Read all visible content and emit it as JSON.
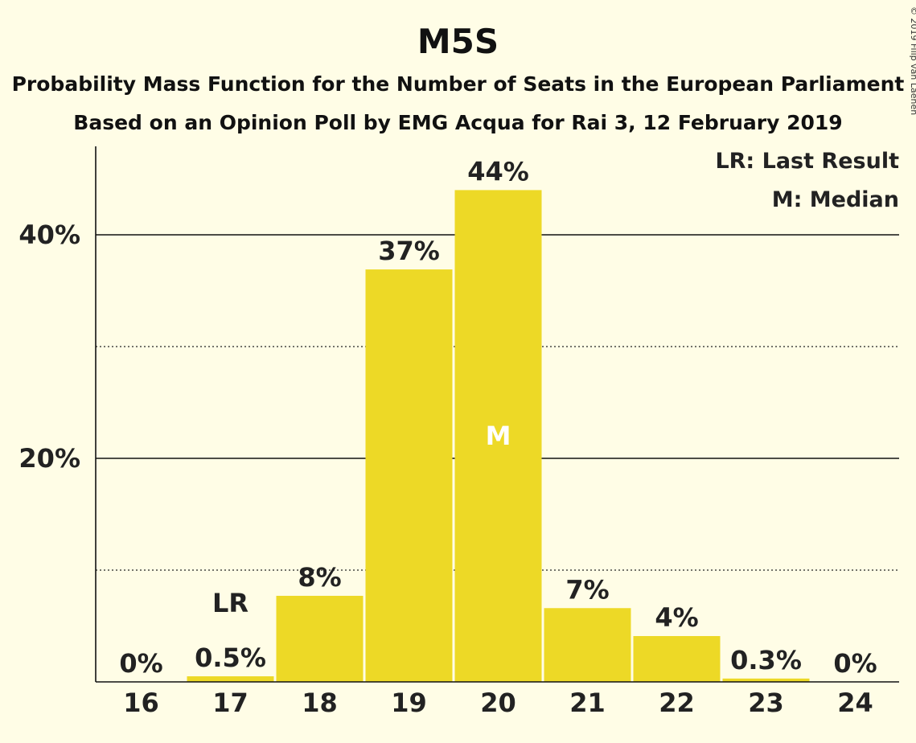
{
  "chart_data": {
    "type": "bar",
    "title": "M5S",
    "subtitle_line1": "Probability Mass Function for the Number of Seats in the European Parliament",
    "subtitle_line2": "Based on an Opinion Poll by EMG Acqua for Rai 3, 12 February 2019",
    "categories": [
      "16",
      "17",
      "18",
      "19",
      "20",
      "21",
      "22",
      "23",
      "24"
    ],
    "values": [
      0,
      0.5,
      7.7,
      36.9,
      44,
      6.6,
      4.1,
      0.3,
      0
    ],
    "value_labels": [
      "0%",
      "0.5%",
      "8%",
      "37%",
      "44%",
      "7%",
      "4%",
      "0.3%",
      "0%"
    ],
    "y_ticks": [
      {
        "value": 20,
        "label": "20%"
      },
      {
        "value": 40,
        "label": "40%"
      }
    ],
    "ylim": [
      0,
      48
    ],
    "grid_major": [
      20,
      40
    ],
    "grid_minor": [
      10,
      30
    ],
    "last_result": {
      "category": "17",
      "marker": "LR"
    },
    "median": {
      "category": "20",
      "marker": "M"
    },
    "legend": {
      "last_result": "LR: Last Result",
      "median": "M: Median",
      "position": "top-right"
    },
    "bar_color": "#EDD926",
    "background_color": "#FFFDE6"
  },
  "copyright": "© 2019 Filip van Laenen"
}
